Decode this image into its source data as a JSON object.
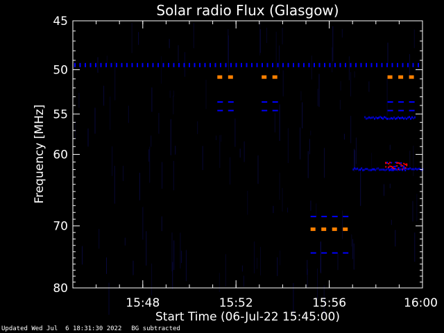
{
  "chart_data": {
    "type": "heatmap",
    "title": "Solar radio Flux (Glasgow)",
    "xlabel": "Start Time (06-Jul-22 15:45:00)",
    "ylabel": "Frequency [MHz]",
    "x_range_minutes": [
      0,
      15
    ],
    "x_ticks": [
      {
        "minute": 3,
        "label": "15:48"
      },
      {
        "minute": 7,
        "label": "15:52"
      },
      {
        "minute": 11,
        "label": "15:56"
      },
      {
        "minute": 15,
        "label": "16:00"
      }
    ],
    "y_scale": "log",
    "y_range_mhz": [
      45,
      80
    ],
    "y_ticks": [
      45,
      50,
      55,
      60,
      70,
      80
    ],
    "background_color": "#000000",
    "frame_color": "#ffffff",
    "colormap": [
      "#000000",
      "#0000ff",
      "#ff0000",
      "#ff8000"
    ],
    "features": [
      {
        "kind": "interference-line",
        "freq_mhz": 49.5,
        "level": "blue",
        "t_start": 0,
        "t_end": 15
      },
      {
        "kind": "burst-dashes",
        "freq_mhz": 50.8,
        "level": "orange",
        "t_start": 6.2,
        "t_end": 7.3
      },
      {
        "kind": "burst-dashes",
        "freq_mhz": 50.8,
        "level": "orange",
        "t_start": 8.1,
        "t_end": 8.8
      },
      {
        "kind": "burst-dashes",
        "freq_mhz": 50.8,
        "level": "orange",
        "t_start": 13.5,
        "t_end": 14.9
      },
      {
        "kind": "burst-dashes",
        "freq_mhz": 53.6,
        "level": "blue",
        "t_start": 6.2,
        "t_end": 7.3
      },
      {
        "kind": "burst-dashes",
        "freq_mhz": 53.6,
        "level": "blue",
        "t_start": 8.1,
        "t_end": 8.8
      },
      {
        "kind": "burst-dashes",
        "freq_mhz": 53.6,
        "level": "blue",
        "t_start": 13.5,
        "t_end": 14.9
      },
      {
        "kind": "burst-dashes",
        "freq_mhz": 54.6,
        "level": "blue",
        "t_start": 6.2,
        "t_end": 7.3
      },
      {
        "kind": "burst-dashes",
        "freq_mhz": 54.6,
        "level": "blue",
        "t_start": 8.1,
        "t_end": 8.8
      },
      {
        "kind": "burst-dashes",
        "freq_mhz": 54.6,
        "level": "blue",
        "t_start": 13.5,
        "t_end": 14.9
      },
      {
        "kind": "burst-dashes",
        "freq_mhz": 68.6,
        "level": "blue",
        "t_start": 10.2,
        "t_end": 11.8
      },
      {
        "kind": "burst-dashes",
        "freq_mhz": 70.5,
        "level": "orange",
        "t_start": 10.2,
        "t_end": 11.8
      },
      {
        "kind": "burst-dashes",
        "freq_mhz": 74.2,
        "level": "blue",
        "t_start": 10.2,
        "t_end": 11.8
      },
      {
        "kind": "diffuse-band",
        "freq_mhz": 55.5,
        "level": "blue",
        "t_start": 12.5,
        "t_end": 14.7
      },
      {
        "kind": "diffuse-band",
        "freq_mhz": 62.0,
        "level": "blue",
        "t_start": 12.0,
        "t_end": 15
      },
      {
        "kind": "hot-spot",
        "freq_mhz": 61.5,
        "level": "red",
        "t_start": 13.4,
        "t_end": 14.3
      }
    ]
  },
  "footer": {
    "updated": "Updated Wed Jul  6 18:31:30 2022",
    "note": "BG subtracted"
  }
}
